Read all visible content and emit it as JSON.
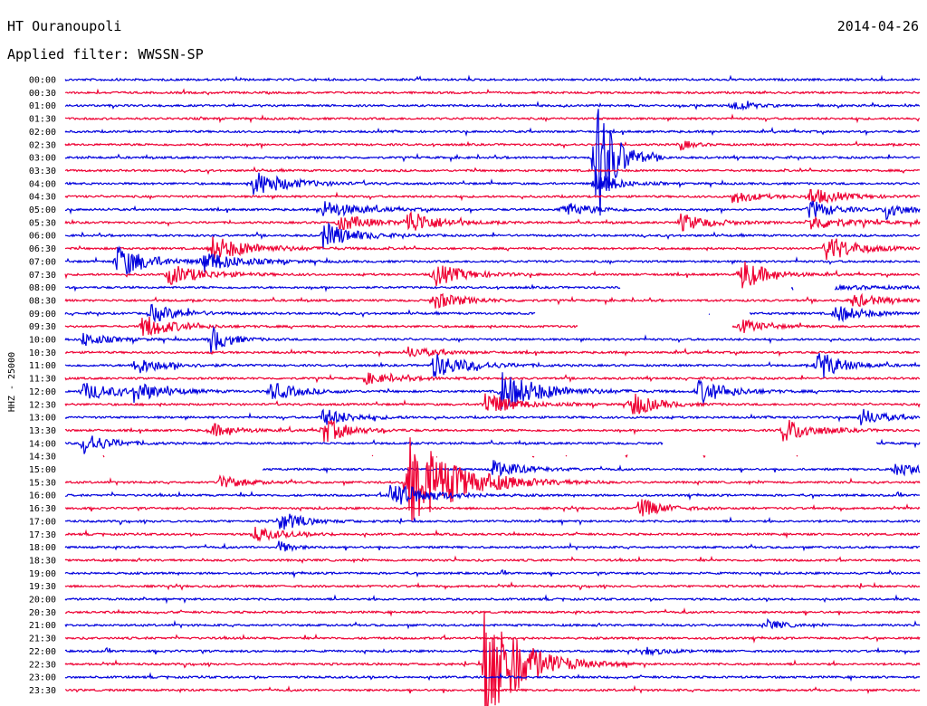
{
  "header": {
    "station": "HT Ouranoupoli",
    "filter": "Applied filter: WWSSN-SP",
    "date": "2014-04-26"
  },
  "chart_data": {
    "type": "line",
    "title": "HT Ouranoupoli",
    "subtitle": "Applied filter: WWSSN-SP",
    "date": "2014-04-26",
    "ylabel": "HHZ - 25000",
    "xlabel": "",
    "grid": false,
    "legend": "none",
    "colors": [
      "#0000dd",
      "#ee0033"
    ],
    "rows": [
      "00:00",
      "00:30",
      "01:00",
      "01:30",
      "02:00",
      "02:30",
      "03:00",
      "03:30",
      "04:00",
      "04:30",
      "05:00",
      "05:30",
      "06:00",
      "06:30",
      "07:00",
      "07:30",
      "08:00",
      "08:30",
      "09:00",
      "09:30",
      "10:00",
      "10:30",
      "11:00",
      "11:30",
      "12:00",
      "12:30",
      "13:00",
      "13:30",
      "14:00",
      "14:30",
      "15:00",
      "15:30",
      "16:00",
      "16:30",
      "17:00",
      "17:30",
      "18:00",
      "18:30",
      "19:00",
      "19:30",
      "20:00",
      "20:30",
      "21:00",
      "21:30",
      "22:00",
      "22:30",
      "23:00",
      "23:30"
    ],
    "events": [
      {
        "row": 2,
        "x": 0.78,
        "amp": 7,
        "dur": 0.03
      },
      {
        "row": 5,
        "x": 0.72,
        "amp": 6,
        "dur": 0.02
      },
      {
        "row": 6,
        "x": 0.62,
        "amp": 90,
        "dur": 0.03
      },
      {
        "row": 8,
        "x": 0.22,
        "amp": 14,
        "dur": 0.06
      },
      {
        "row": 8,
        "x": 0.62,
        "amp": 18,
        "dur": 0.03
      },
      {
        "row": 9,
        "x": 0.78,
        "amp": 8,
        "dur": 0.04
      },
      {
        "row": 9,
        "x": 0.87,
        "amp": 10,
        "dur": 0.05
      },
      {
        "row": 10,
        "x": 0.3,
        "amp": 10,
        "dur": 0.06
      },
      {
        "row": 10,
        "x": 0.58,
        "amp": 9,
        "dur": 0.05
      },
      {
        "row": 10,
        "x": 0.87,
        "amp": 12,
        "dur": 0.04
      },
      {
        "row": 10,
        "x": 0.96,
        "amp": 12,
        "dur": 0.03
      },
      {
        "row": 11,
        "x": 0.32,
        "amp": 10,
        "dur": 0.05
      },
      {
        "row": 11,
        "x": 0.4,
        "amp": 14,
        "dur": 0.05
      },
      {
        "row": 11,
        "x": 0.72,
        "amp": 10,
        "dur": 0.05
      },
      {
        "row": 11,
        "x": 0.87,
        "amp": 9,
        "dur": 0.06
      },
      {
        "row": 12,
        "x": 0.3,
        "amp": 16,
        "dur": 0.05
      },
      {
        "row": 13,
        "x": 0.17,
        "amp": 14,
        "dur": 0.07
      },
      {
        "row": 13,
        "x": 0.89,
        "amp": 16,
        "dur": 0.05
      },
      {
        "row": 14,
        "x": 0.06,
        "amp": 20,
        "dur": 0.05
      },
      {
        "row": 14,
        "x": 0.16,
        "amp": 12,
        "dur": 0.06
      },
      {
        "row": 15,
        "x": 0.12,
        "amp": 12,
        "dur": 0.06
      },
      {
        "row": 15,
        "x": 0.43,
        "amp": 14,
        "dur": 0.05
      },
      {
        "row": 15,
        "x": 0.79,
        "amp": 20,
        "dur": 0.04
      },
      {
        "row": 16,
        "x": 0.74,
        "amp": 5,
        "dur": 0.2
      },
      {
        "row": 17,
        "x": 0.43,
        "amp": 10,
        "dur": 0.05
      },
      {
        "row": 17,
        "x": 0.92,
        "amp": 8,
        "dur": 0.05
      },
      {
        "row": 18,
        "x": 0.1,
        "amp": 10,
        "dur": 0.05
      },
      {
        "row": 18,
        "x": 0.9,
        "amp": 10,
        "dur": 0.05
      },
      {
        "row": 19,
        "x": 0.09,
        "amp": 14,
        "dur": 0.05
      },
      {
        "row": 19,
        "x": 0.79,
        "amp": 8,
        "dur": 0.04
      },
      {
        "row": 20,
        "x": 0.02,
        "amp": 8,
        "dur": 0.04
      },
      {
        "row": 20,
        "x": 0.17,
        "amp": 16,
        "dur": 0.03
      },
      {
        "row": 21,
        "x": 0.4,
        "amp": 6,
        "dur": 0.05
      },
      {
        "row": 22,
        "x": 0.08,
        "amp": 10,
        "dur": 0.05
      },
      {
        "row": 22,
        "x": 0.43,
        "amp": 14,
        "dur": 0.06
      },
      {
        "row": 22,
        "x": 0.88,
        "amp": 18,
        "dur": 0.04
      },
      {
        "row": 23,
        "x": 0.35,
        "amp": 6,
        "dur": 0.06
      },
      {
        "row": 24,
        "x": 0.02,
        "amp": 10,
        "dur": 0.06
      },
      {
        "row": 24,
        "x": 0.08,
        "amp": 10,
        "dur": 0.05
      },
      {
        "row": 24,
        "x": 0.24,
        "amp": 10,
        "dur": 0.05
      },
      {
        "row": 24,
        "x": 0.51,
        "amp": 22,
        "dur": 0.07
      },
      {
        "row": 24,
        "x": 0.74,
        "amp": 14,
        "dur": 0.05
      },
      {
        "row": 25,
        "x": 0.49,
        "amp": 14,
        "dur": 0.05
      },
      {
        "row": 25,
        "x": 0.66,
        "amp": 16,
        "dur": 0.04
      },
      {
        "row": 26,
        "x": 0.3,
        "amp": 10,
        "dur": 0.05
      },
      {
        "row": 26,
        "x": 0.93,
        "amp": 10,
        "dur": 0.04
      },
      {
        "row": 27,
        "x": 0.17,
        "amp": 8,
        "dur": 0.04
      },
      {
        "row": 27,
        "x": 0.3,
        "amp": 16,
        "dur": 0.04
      },
      {
        "row": 27,
        "x": 0.84,
        "amp": 14,
        "dur": 0.05
      },
      {
        "row": 28,
        "x": 0.02,
        "amp": 14,
        "dur": 0.04
      },
      {
        "row": 30,
        "x": 0.5,
        "amp": 10,
        "dur": 0.05
      },
      {
        "row": 30,
        "x": 0.97,
        "amp": 10,
        "dur": 0.04
      },
      {
        "row": 31,
        "x": 0.4,
        "amp": 60,
        "dur": 0.08
      },
      {
        "row": 31,
        "x": 0.18,
        "amp": 8,
        "dur": 0.04
      },
      {
        "row": 32,
        "x": 0.38,
        "amp": 16,
        "dur": 0.06
      },
      {
        "row": 33,
        "x": 0.67,
        "amp": 12,
        "dur": 0.04
      },
      {
        "row": 34,
        "x": 0.25,
        "amp": 12,
        "dur": 0.04
      },
      {
        "row": 35,
        "x": 0.22,
        "amp": 8,
        "dur": 0.05
      },
      {
        "row": 36,
        "x": 0.25,
        "amp": 8,
        "dur": 0.02
      },
      {
        "row": 42,
        "x": 0.82,
        "amp": 6,
        "dur": 0.03
      },
      {
        "row": 44,
        "x": 0.68,
        "amp": 4,
        "dur": 0.04
      },
      {
        "row": 45,
        "x": 0.49,
        "amp": 80,
        "dur": 0.06
      }
    ],
    "gaps": [
      {
        "row": 28,
        "from": 0.7,
        "to": 0.95
      },
      {
        "row": 29,
        "from": 0.0,
        "to": 1.0
      },
      {
        "row": 30,
        "from": 0.0,
        "to": 0.23
      },
      {
        "row": 16,
        "from": 0.65,
        "to": 0.9
      },
      {
        "row": 18,
        "from": 0.55,
        "to": 0.8
      },
      {
        "row": 19,
        "from": 0.6,
        "to": 0.78
      }
    ]
  }
}
